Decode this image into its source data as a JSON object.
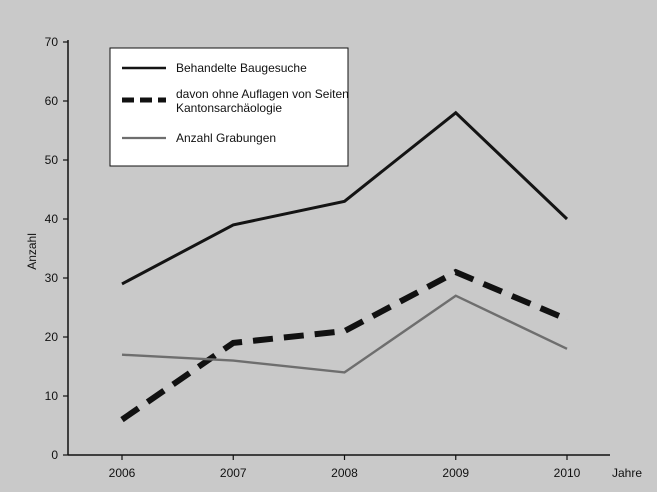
{
  "chart_data": {
    "type": "line",
    "x": [
      "2006",
      "2007",
      "2008",
      "2009",
      "2010"
    ],
    "xlabel": "Jahre",
    "ylabel": "Anzahl",
    "ylim": [
      0,
      70
    ],
    "yticks": [
      0,
      10,
      20,
      30,
      40,
      50,
      60,
      70
    ],
    "grid": false,
    "legend_position": "top-left",
    "series": [
      {
        "name": "Behandelte Baugesuche",
        "values": [
          29,
          39,
          43,
          58,
          40
        ],
        "color": "#141414",
        "style": "solid"
      },
      {
        "name": "davon ohne Auflagen von Seiten Kantonsarchäologie",
        "name_lines": [
          "davon ohne Auflagen von Seiten",
          "Kantonsarchäologie"
        ],
        "values": [
          6,
          19,
          21,
          31,
          23
        ],
        "color": "#111111",
        "style": "dashed"
      },
      {
        "name": "Anzahl Grabungen",
        "values": [
          17,
          16,
          14,
          27,
          18
        ],
        "color": "#6e6e6e",
        "style": "solid"
      }
    ]
  }
}
